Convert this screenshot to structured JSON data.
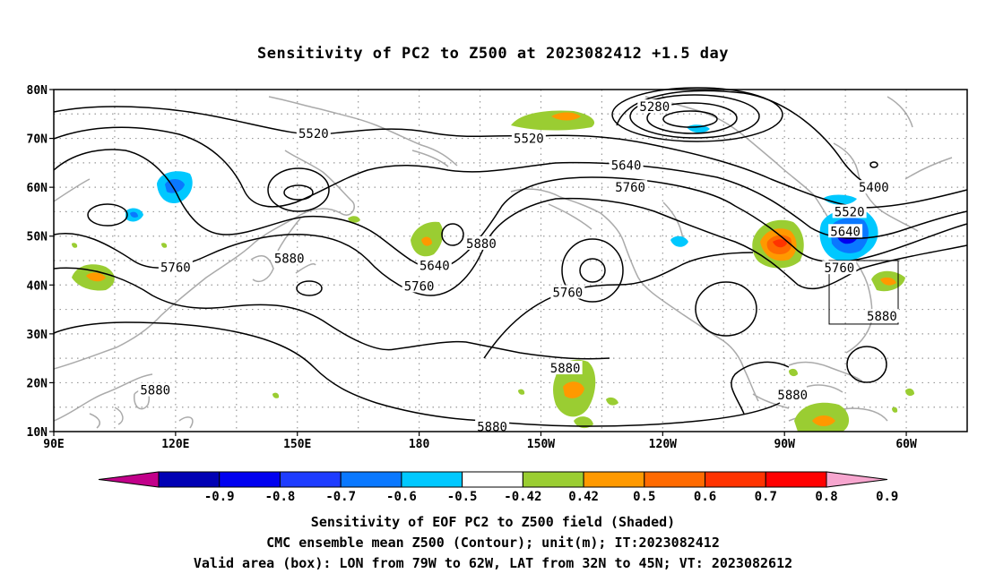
{
  "title": "Sensitivity of PC2 to Z500 at 2023082412 +1.5 day",
  "axes": {
    "lon_ticks": [
      "90E",
      "120E",
      "150E",
      "180",
      "150W",
      "120W",
      "90W",
      "60W"
    ],
    "lat_ticks": [
      "80N",
      "70N",
      "60N",
      "50N",
      "40N",
      "30N",
      "20N",
      "10N"
    ],
    "lon_range": [
      90,
      315
    ],
    "lat_range": [
      10,
      80
    ]
  },
  "colorbar": {
    "labels": [
      "-0.9",
      "-0.8",
      "-0.7",
      "-0.6",
      "-0.5",
      "-0.42",
      "0.42",
      "0.5",
      "0.6",
      "0.7",
      "0.8",
      "0.9"
    ],
    "colors": [
      "#c2008a",
      "#0000b4",
      "#0000f0",
      "#1e3cff",
      "#0a78ff",
      "#00c8ff",
      "#ffffff",
      "#9acd32",
      "#ff9900",
      "#ff6a00",
      "#ff3300",
      "#ff0000",
      "#f7a6cf"
    ]
  },
  "contour_labels": [
    {
      "text": "5280",
      "lon": 238,
      "lat": 76.5
    },
    {
      "text": "5520",
      "lon": 154,
      "lat": 71
    },
    {
      "text": "5520",
      "lon": 207,
      "lat": 70
    },
    {
      "text": "5640",
      "lon": 231,
      "lat": 64.5
    },
    {
      "text": "5760",
      "lon": 232,
      "lat": 60
    },
    {
      "text": "5400",
      "lon": 292,
      "lat": 60
    },
    {
      "text": "5520",
      "lon": 286,
      "lat": 55
    },
    {
      "text": "5640",
      "lon": 285,
      "lat": 51
    },
    {
      "text": "5760",
      "lon": 283.5,
      "lat": 43.5
    },
    {
      "text": "5880",
      "lon": 195.3,
      "lat": 48.5
    },
    {
      "text": "5640",
      "lon": 183.8,
      "lat": 44
    },
    {
      "text": "5760",
      "lon": 180,
      "lat": 39.8
    },
    {
      "text": "5760",
      "lon": 216.6,
      "lat": 38.5
    },
    {
      "text": "5880",
      "lon": 148,
      "lat": 45.5
    },
    {
      "text": "5760",
      "lon": 120,
      "lat": 43.6
    },
    {
      "text": "5880",
      "lon": 216,
      "lat": 23
    },
    {
      "text": "5880",
      "lon": 115,
      "lat": 18.5
    },
    {
      "text": "5880",
      "lon": 198,
      "lat": 11
    },
    {
      "text": "5880",
      "lon": 272,
      "lat": 17.5
    },
    {
      "text": "5880",
      "lon": 294,
      "lat": 33.6
    }
  ],
  "valid_box": {
    "lon": [
      281,
      298
    ],
    "lat": [
      32,
      45
    ]
  },
  "footer": {
    "line1": "Sensitivity of EOF PC2 to Z500 field (Shaded)",
    "line2": "CMC ensemble mean Z500 (Contour); unit(m); IT:2023082412",
    "line3": "Valid area (box): LON from 79W to 62W, LAT from 32N to 45N; VT: 2023082612"
  }
}
